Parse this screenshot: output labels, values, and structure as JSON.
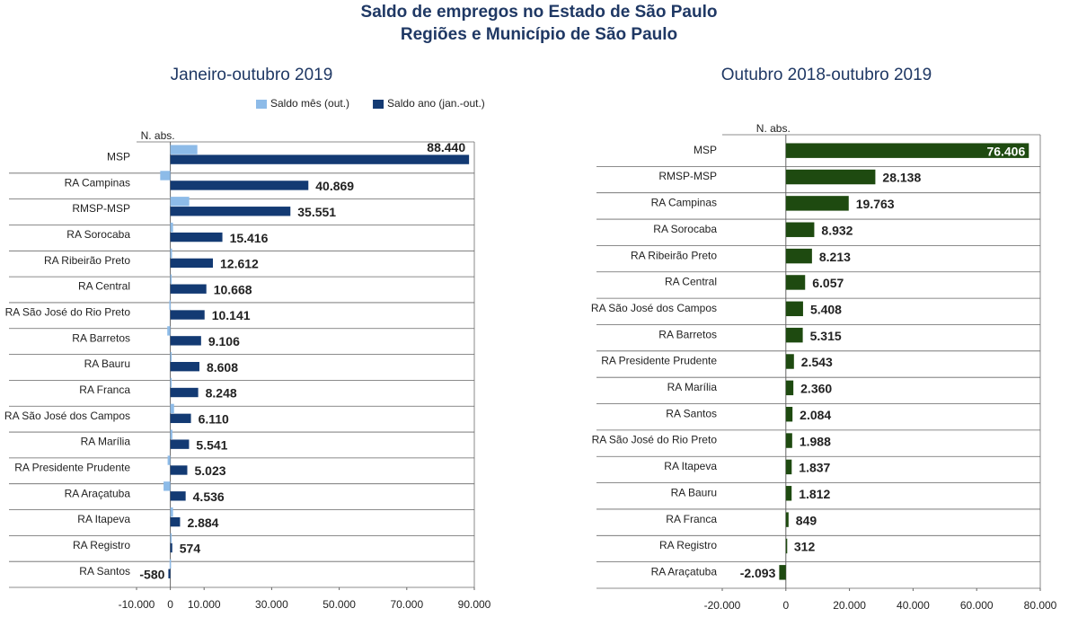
{
  "title": [
    "Saldo de empregos no Estado de São Paulo",
    "Regiões e Município de São Paulo"
  ],
  "chart_data": [
    {
      "type": "hbar",
      "subtitle": "Janeiro-outubro 2019",
      "axis_label": "N. abs.",
      "categories": [
        "MSP",
        "RA Campinas",
        "RMSP-MSP",
        "RA Sorocaba",
        "RA Ribeirão Preto",
        "RA Central",
        "RA São José do Rio Preto",
        "RA Barretos",
        "RA Bauru",
        "RA Franca",
        "RA São José dos Campos",
        "RA Marília",
        "RA Presidente Prudente",
        "RA Araçatuba",
        "RA Itapeva",
        "RA Registro",
        "RA Santos"
      ],
      "series": [
        {
          "name": "Saldo mês (out.)",
          "color": "#8dbbe8",
          "values": [
            8000,
            -3000,
            5600,
            800,
            500,
            200,
            -300,
            -900,
            300,
            200,
            1100,
            600,
            -800,
            -2000,
            800,
            100,
            -200
          ]
        },
        {
          "name": "Saldo ano (jan.-out.)",
          "color": "#133a73",
          "values": [
            88440,
            40869,
            35551,
            15416,
            12612,
            10668,
            10141,
            9106,
            8608,
            8248,
            6110,
            5541,
            5023,
            4536,
            2884,
            574,
            -580
          ],
          "value_labels": [
            "88.440",
            "40.869",
            "35.551",
            "15.416",
            "12.612",
            "10.668",
            "10.141",
            "9.106",
            "8.608",
            "8.248",
            "6.110",
            "5.541",
            "5.023",
            "4.536",
            "2.884",
            "574",
            "-580"
          ]
        }
      ],
      "xlim": [
        -10000,
        90000
      ],
      "xticks": [
        {
          "value": -10000,
          "label": "-10.000"
        },
        0,
        {
          "value": 10000,
          "label": "10.000"
        },
        {
          "value": 30000,
          "label": "30.000"
        },
        {
          "value": 50000,
          "label": "50.000"
        },
        {
          "value": 70000,
          "label": "70.000"
        },
        {
          "value": 90000,
          "label": "90.000"
        }
      ],
      "legend": "top"
    },
    {
      "type": "hbar",
      "subtitle": "Outubro 2018-outubro 2019",
      "axis_label": "N. abs.",
      "categories": [
        "MSP",
        "RMSP-MSP",
        "RA Campinas",
        "RA Sorocaba",
        "RA Ribeirão Preto",
        "RA Central",
        "RA São José dos Campos",
        "RA Barretos",
        "RA Presidente Prudente",
        "RA Marília",
        "RA Santos",
        "RA São José do Rio Preto",
        "RA Itapeva",
        "RA Bauru",
        "RA Franca",
        "RA Registro",
        "RA Araçatuba"
      ],
      "series": [
        {
          "color": "#1e4a10",
          "values": [
            76406,
            28138,
            19763,
            8932,
            8213,
            6057,
            5408,
            5315,
            2543,
            2360,
            2084,
            1988,
            1837,
            1812,
            849,
            312,
            -2093
          ],
          "value_labels": [
            "76.406",
            "28.138",
            "19.763",
            "8.932",
            "8.213",
            "6.057",
            "5.408",
            "5.315",
            "2.543",
            "2.360",
            "2.084",
            "1.988",
            "1.837",
            "1.812",
            "849",
            "312",
            "-2.093"
          ]
        }
      ],
      "xlim": [
        -20000,
        80000
      ],
      "xticks": [
        {
          "value": -20000,
          "label": "-20.000"
        },
        0,
        {
          "value": 20000,
          "label": "20.000"
        },
        {
          "value": 40000,
          "label": "40.000"
        },
        {
          "value": 60000,
          "label": "60.000"
        },
        {
          "value": 80000,
          "label": "80.000"
        }
      ]
    }
  ]
}
